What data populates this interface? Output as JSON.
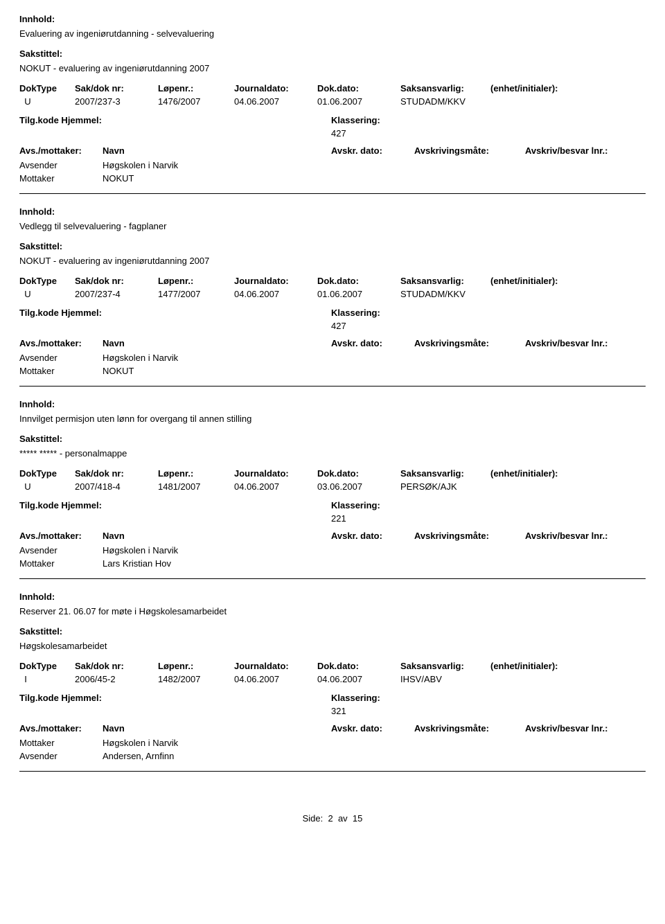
{
  "labels": {
    "innhold": "Innhold:",
    "sakstittel": "Sakstittel:",
    "doktype": "DokType",
    "sakdok": "Sak/dok nr:",
    "lopenr": "Løpenr.:",
    "journaldato": "Journaldato:",
    "dokdato": "Dok.dato:",
    "saksansvarlig": "Saksansvarlig:",
    "enhet": "(enhet/initialer):",
    "tilgkode": "Tilg.kode",
    "hjemmel": "Hjemmel:",
    "klassering": "Klassering:",
    "avsmottaker": "Avs./mottaker:",
    "navn": "Navn",
    "avskrdato": "Avskr. dato:",
    "avskrivingsmate": "Avskrivingsmåte:",
    "avskrivbesvar": "Avskriv/besvar lnr.:",
    "avsender": "Avsender",
    "mottaker": "Mottaker"
  },
  "entries": [
    {
      "innhold": "Evaluering av ingeniørutdanning - selvevaluering",
      "sakstittel": "NOKUT - evaluering av ingeniørutdanning 2007",
      "doktype": "U",
      "sakdok": "2007/237-3",
      "lopenr": "1476/2007",
      "journaldato": "04.06.2007",
      "dokdato": "01.06.2007",
      "saksansvarlig": "STUDADM/KKV",
      "klassering": "427",
      "parties": [
        {
          "role": "Avsender",
          "name": "Høgskolen i Narvik"
        },
        {
          "role": "Mottaker",
          "name": "NOKUT"
        }
      ]
    },
    {
      "innhold": "Vedlegg til selvevaluering - fagplaner",
      "sakstittel": "NOKUT - evaluering av ingeniørutdanning 2007",
      "doktype": "U",
      "sakdok": "2007/237-4",
      "lopenr": "1477/2007",
      "journaldato": "04.06.2007",
      "dokdato": "01.06.2007",
      "saksansvarlig": "STUDADM/KKV",
      "klassering": "427",
      "parties": [
        {
          "role": "Avsender",
          "name": "Høgskolen i Narvik"
        },
        {
          "role": "Mottaker",
          "name": "NOKUT"
        }
      ]
    },
    {
      "innhold": "Innvilget permisjon uten lønn for overgang til annen stilling",
      "sakstittel": "***** ***** - personalmappe",
      "doktype": "U",
      "sakdok": "2007/418-4",
      "lopenr": "1481/2007",
      "journaldato": "04.06.2007",
      "dokdato": "03.06.2007",
      "saksansvarlig": "PERSØK/AJK",
      "klassering": "221",
      "parties": [
        {
          "role": "Avsender",
          "name": "Høgskolen i Narvik"
        },
        {
          "role": "Mottaker",
          "name": "Lars Kristian Hov"
        }
      ]
    },
    {
      "innhold": "Reserver 21. 06.07 for møte i Høgskolesamarbeidet",
      "sakstittel": "Høgskolesamarbeidet",
      "doktype": "I",
      "sakdok": "2006/45-2",
      "lopenr": "1482/2007",
      "journaldato": "04.06.2007",
      "dokdato": "04.06.2007",
      "saksansvarlig": "IHSV/ABV",
      "klassering": "321",
      "parties": [
        {
          "role": "Mottaker",
          "name": "Høgskolen i Narvik"
        },
        {
          "role": "Avsender",
          "name": "Andersen, Arnfinn"
        }
      ]
    }
  ],
  "footer": {
    "prefix": "Side:",
    "page": "2",
    "sep": "av",
    "total": "15"
  }
}
